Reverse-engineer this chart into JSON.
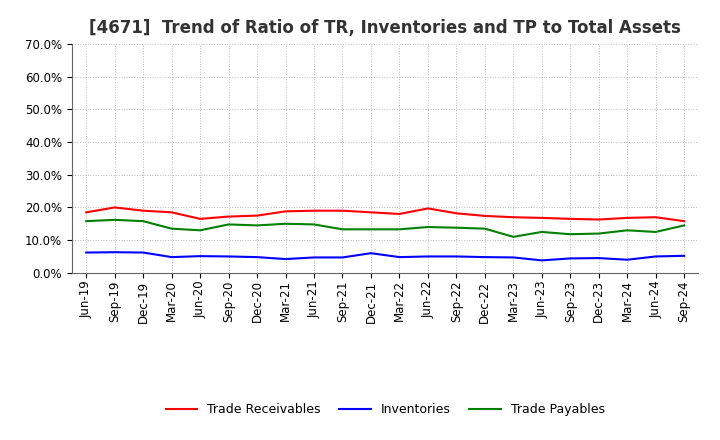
{
  "title": "[4671]  Trend of Ratio of TR, Inventories and TP to Total Assets",
  "x_labels": [
    "Jun-19",
    "Sep-19",
    "Dec-19",
    "Mar-20",
    "Jun-20",
    "Sep-20",
    "Dec-20",
    "Mar-21",
    "Jun-21",
    "Sep-21",
    "Dec-21",
    "Mar-22",
    "Jun-22",
    "Sep-22",
    "Dec-22",
    "Mar-23",
    "Jun-23",
    "Sep-23",
    "Dec-23",
    "Mar-24",
    "Jun-24",
    "Sep-24"
  ],
  "trade_receivables": [
    0.185,
    0.2,
    0.19,
    0.185,
    0.165,
    0.172,
    0.175,
    0.188,
    0.19,
    0.19,
    0.185,
    0.18,
    0.197,
    0.182,
    0.174,
    0.17,
    0.168,
    0.165,
    0.163,
    0.168,
    0.17,
    0.158
  ],
  "inventories": [
    0.062,
    0.063,
    0.062,
    0.048,
    0.051,
    0.05,
    0.048,
    0.042,
    0.047,
    0.047,
    0.06,
    0.048,
    0.05,
    0.05,
    0.048,
    0.047,
    0.038,
    0.044,
    0.045,
    0.04,
    0.05,
    0.052
  ],
  "trade_payables": [
    0.158,
    0.162,
    0.158,
    0.135,
    0.13,
    0.148,
    0.145,
    0.15,
    0.148,
    0.133,
    0.133,
    0.133,
    0.14,
    0.138,
    0.135,
    0.11,
    0.125,
    0.118,
    0.12,
    0.13,
    0.125,
    0.145
  ],
  "tr_color": "#ff0000",
  "inv_color": "#0000ff",
  "tp_color": "#008000",
  "ylim": [
    0.0,
    0.7
  ],
  "yticks": [
    0.0,
    0.1,
    0.2,
    0.3,
    0.4,
    0.5,
    0.6,
    0.7
  ],
  "bg_color": "#ffffff",
  "plot_bg_color": "#ffffff",
  "grid_color": "#aaaaaa",
  "linewidth": 1.5,
  "title_fontsize": 12,
  "tick_fontsize": 8.5,
  "legend_fontsize": 9
}
